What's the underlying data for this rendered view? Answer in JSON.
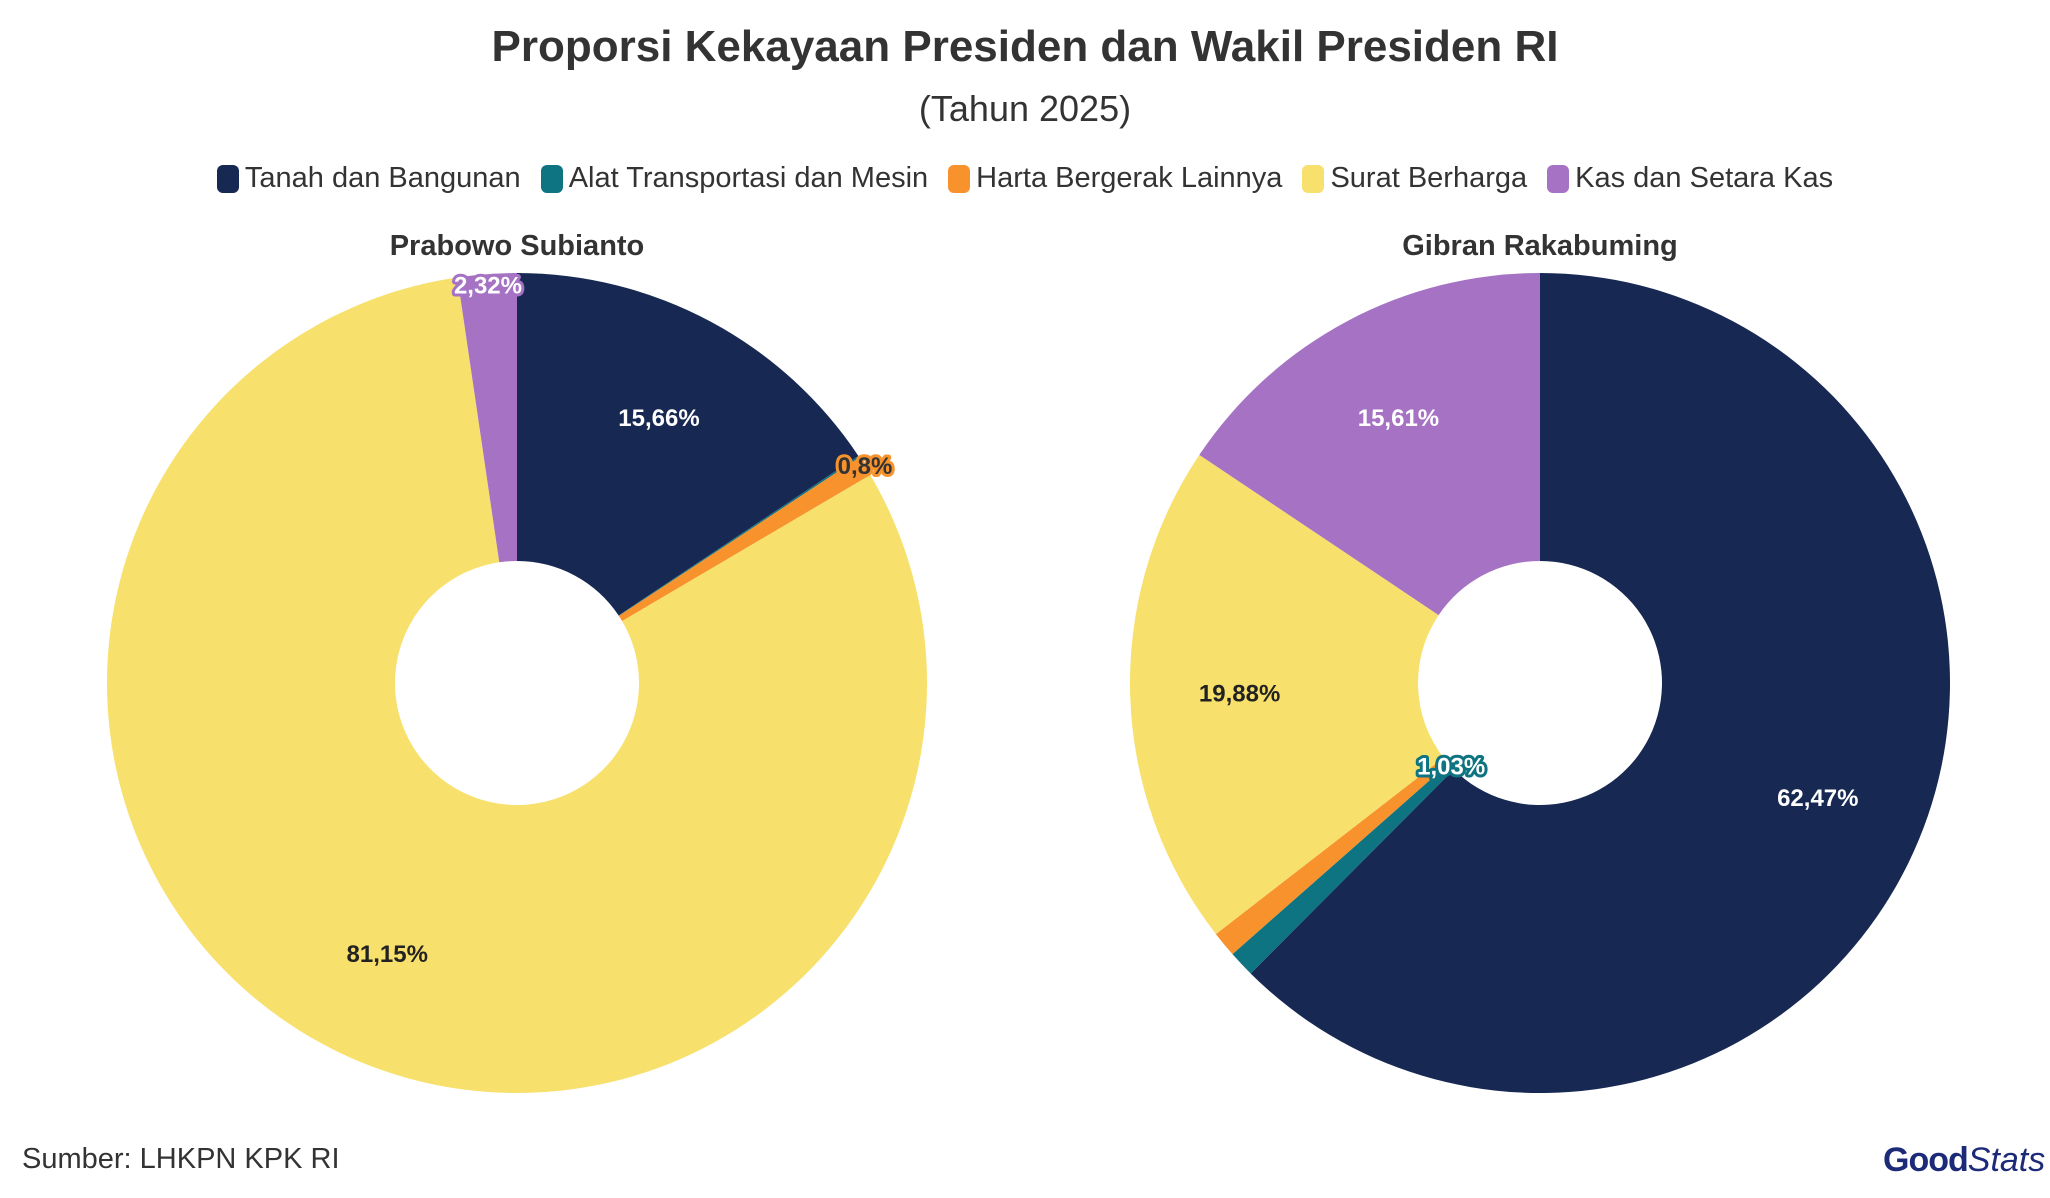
{
  "title": "Proporsi Kekayaan Presiden dan Wakil Presiden RI",
  "subtitle": "(Tahun 2025)",
  "legend": [
    {
      "label": "Tanah dan Bangunan",
      "color": "#172853"
    },
    {
      "label": "Alat Transportasi dan Mesin",
      "color": "#0f7482"
    },
    {
      "label": "Harta Bergerak Lainnya",
      "color": "#f7922c"
    },
    {
      "label": "Surat Berharga",
      "color": "#f8e06d"
    },
    {
      "label": "Kas dan Setara Kas",
      "color": "#a572c4"
    }
  ],
  "chart_data": [
    {
      "type": "pie",
      "title": "Prabowo Subianto",
      "categories": [
        "Tanah dan Bangunan",
        "Alat Transportasi dan Mesin",
        "Harta Bergerak Lainnya",
        "Surat Berharga",
        "Kas dan Setara Kas"
      ],
      "values": [
        15.66,
        0.07,
        0.8,
        81.15,
        2.32
      ],
      "labels": [
        "15,66%",
        "",
        "0,8%",
        "81,15%",
        "2,32%"
      ]
    },
    {
      "type": "pie",
      "title": "Gibran Rakabuming",
      "categories": [
        "Tanah dan Bangunan",
        "Alat Transportasi dan Mesin",
        "Harta Bergerak Lainnya",
        "Surat Berharga",
        "Kas dan Setara Kas"
      ],
      "values": [
        62.47,
        1.03,
        1.01,
        19.88,
        15.61
      ],
      "labels": [
        "62,47%",
        "1,03%",
        "",
        "19,88%",
        "15,61%"
      ]
    }
  ],
  "source": "Sumber: LHKPN KPK RI",
  "logo": {
    "part1": "Good",
    "part2": "Stats"
  }
}
